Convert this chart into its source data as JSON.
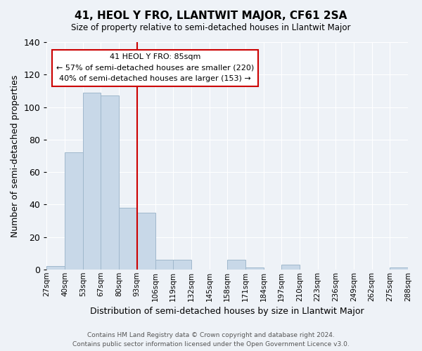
{
  "title": "41, HEOL Y FRO, LLANTWIT MAJOR, CF61 2SA",
  "subtitle": "Size of property relative to semi-detached houses in Llantwit Major",
  "xlabel": "Distribution of semi-detached houses by size in Llantwit Major",
  "ylabel": "Number of semi-detached properties",
  "bin_labels": [
    "27sqm",
    "40sqm",
    "53sqm",
    "67sqm",
    "80sqm",
    "93sqm",
    "106sqm",
    "119sqm",
    "132sqm",
    "145sqm",
    "158sqm",
    "171sqm",
    "184sqm",
    "197sqm",
    "210sqm",
    "223sqm",
    "236sqm",
    "249sqm",
    "262sqm",
    "275sqm",
    "288sqm"
  ],
  "bar_values": [
    2,
    72,
    109,
    107,
    38,
    35,
    6,
    6,
    0,
    0,
    6,
    1,
    0,
    3,
    0,
    0,
    0,
    0,
    0,
    1
  ],
  "bar_color": "#c8d8e8",
  "bar_edge_color": "#a0b8cc",
  "vline_index": 4,
  "ylim": [
    0,
    140
  ],
  "yticks": [
    0,
    20,
    40,
    60,
    80,
    100,
    120,
    140
  ],
  "annotation_title": "41 HEOL Y FRO: 85sqm",
  "annotation_line1": "← 57% of semi-detached houses are smaller (220)",
  "annotation_line2": "40% of semi-detached houses are larger (153) →",
  "annotation_box_color": "#ffffff",
  "annotation_box_edge": "#cc0000",
  "vline_color": "#cc0000",
  "footer_line1": "Contains HM Land Registry data © Crown copyright and database right 2024.",
  "footer_line2": "Contains public sector information licensed under the Open Government Licence v3.0.",
  "background_color": "#eef2f7"
}
